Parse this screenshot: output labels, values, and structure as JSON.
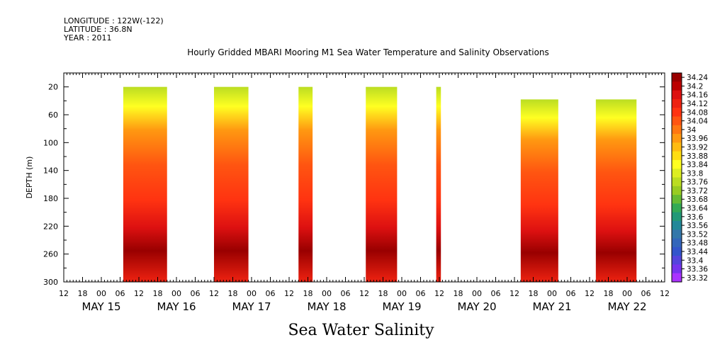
{
  "meta": {
    "longitude": "LONGITUDE : 122W(-122)",
    "latitude": "LATITUDE : 36.8N",
    "year": "YEAR : 2011"
  },
  "chart_data": {
    "type": "heatmap",
    "title": "Hourly Gridded MBARI Mooring M1 Sea Water Temperature and Salinity Observations",
    "footer_label": "Sea Water Salinity",
    "ylabel": "DEPTH (m)",
    "y_range": [
      0,
      300
    ],
    "y_ticks": [
      20,
      60,
      100,
      140,
      180,
      220,
      260,
      300
    ],
    "y_tick_labels": [
      "20",
      "60",
      "100",
      "140",
      "180",
      "220",
      "260",
      "300"
    ],
    "x_range_hours": [
      -12,
      180
    ],
    "x_tick_labels": [
      "12",
      "18",
      "00",
      "06",
      "12",
      "18",
      "00",
      "06",
      "12",
      "18",
      "00",
      "06",
      "12",
      "18",
      "00",
      "06",
      "12",
      "18",
      "00",
      "06",
      "12",
      "18",
      "00",
      "06",
      "12",
      "18",
      "00",
      "06",
      "12",
      "18",
      "00",
      "06",
      "12"
    ],
    "x_day_labels": [
      "MAY 15",
      "MAY 16",
      "MAY 17",
      "MAY 18",
      "MAY 19",
      "MAY 20",
      "MAY 21",
      "MAY 22"
    ],
    "colorbar": {
      "levels": [
        "34.24",
        "34.2",
        "34.16",
        "34.12",
        "34.08",
        "34.04",
        "34",
        "33.96",
        "33.92",
        "33.88",
        "33.84",
        "33.8",
        "33.76",
        "33.72",
        "33.68",
        "33.64",
        "33.6",
        "33.56",
        "33.52",
        "33.48",
        "33.44",
        "33.4",
        "33.36",
        "33.32"
      ],
      "colors": [
        "#990000",
        "#bb0000",
        "#dd1111",
        "#ee2211",
        "#ff3311",
        "#ff5511",
        "#ff7711",
        "#ff9911",
        "#ffbb11",
        "#ffdd11",
        "#ffff22",
        "#ddee22",
        "#bbdd22",
        "#99cc22",
        "#66bb33",
        "#33aa55",
        "#229977",
        "#228899",
        "#3377aa",
        "#3366bb",
        "#3355cc",
        "#5544dd",
        "#7733ee",
        "#aa33ff"
      ]
    },
    "data_segments": [
      {
        "start_h": 7,
        "end_h": 21,
        "top_depth": 20
      },
      {
        "start_h": 36,
        "end_h": 47,
        "top_depth": 20
      },
      {
        "start_h": 63,
        "end_h": 67.5,
        "top_depth": 20
      },
      {
        "start_h": 84.5,
        "end_h": 94.5,
        "top_depth": 20
      },
      {
        "start_h": 107,
        "end_h": 108.5,
        "top_depth": 20
      },
      {
        "start_h": 134,
        "end_h": 146,
        "top_depth": 38
      },
      {
        "start_h": 158,
        "end_h": 171,
        "top_depth": 38
      }
    ]
  }
}
